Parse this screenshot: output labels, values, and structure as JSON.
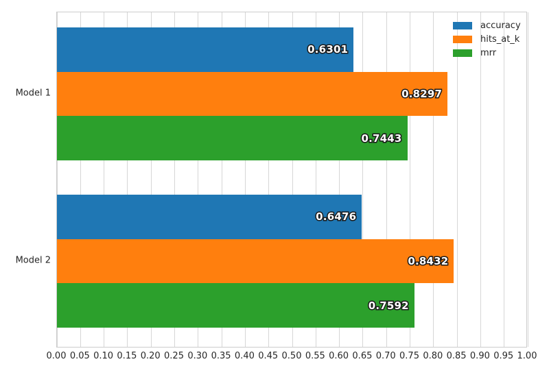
{
  "chart_data": {
    "type": "bar",
    "orientation": "horizontal",
    "title": "",
    "xlabel": "",
    "ylabel": "",
    "xlim": [
      0.0,
      1.0
    ],
    "grid": true,
    "grid_axis": "x",
    "legend_position": "upper right",
    "categories": [
      "Model 1",
      "Model 2"
    ],
    "series": [
      {
        "name": "accuracy",
        "color": "#1f77b4",
        "values": [
          0.6301,
          0.6476
        ],
        "labels": [
          "0.6301",
          "0.6476"
        ]
      },
      {
        "name": "hits_at_k",
        "color": "#ff7f0e",
        "values": [
          0.8297,
          0.8432
        ],
        "labels": [
          "0.8297",
          "0.8432"
        ]
      },
      {
        "name": "mrr",
        "color": "#2ca02c",
        "values": [
          0.7443,
          0.7592
        ],
        "labels": [
          "0.7443",
          "0.7592"
        ]
      }
    ],
    "x_ticks": [
      "0.00",
      "0.05",
      "0.10",
      "0.15",
      "0.20",
      "0.25",
      "0.30",
      "0.35",
      "0.40",
      "0.45",
      "0.50",
      "0.55",
      "0.60",
      "0.65",
      "0.70",
      "0.75",
      "0.80",
      "0.85",
      "0.90",
      "0.95",
      "1.00"
    ]
  },
  "colors": {
    "background": "#ffffff",
    "grid": "#d6d6d6",
    "spine": "#cccccc",
    "tick_text": "#262626",
    "bar_label_fill": "#ffffff",
    "bar_label_outline": "#1a1a1a"
  }
}
